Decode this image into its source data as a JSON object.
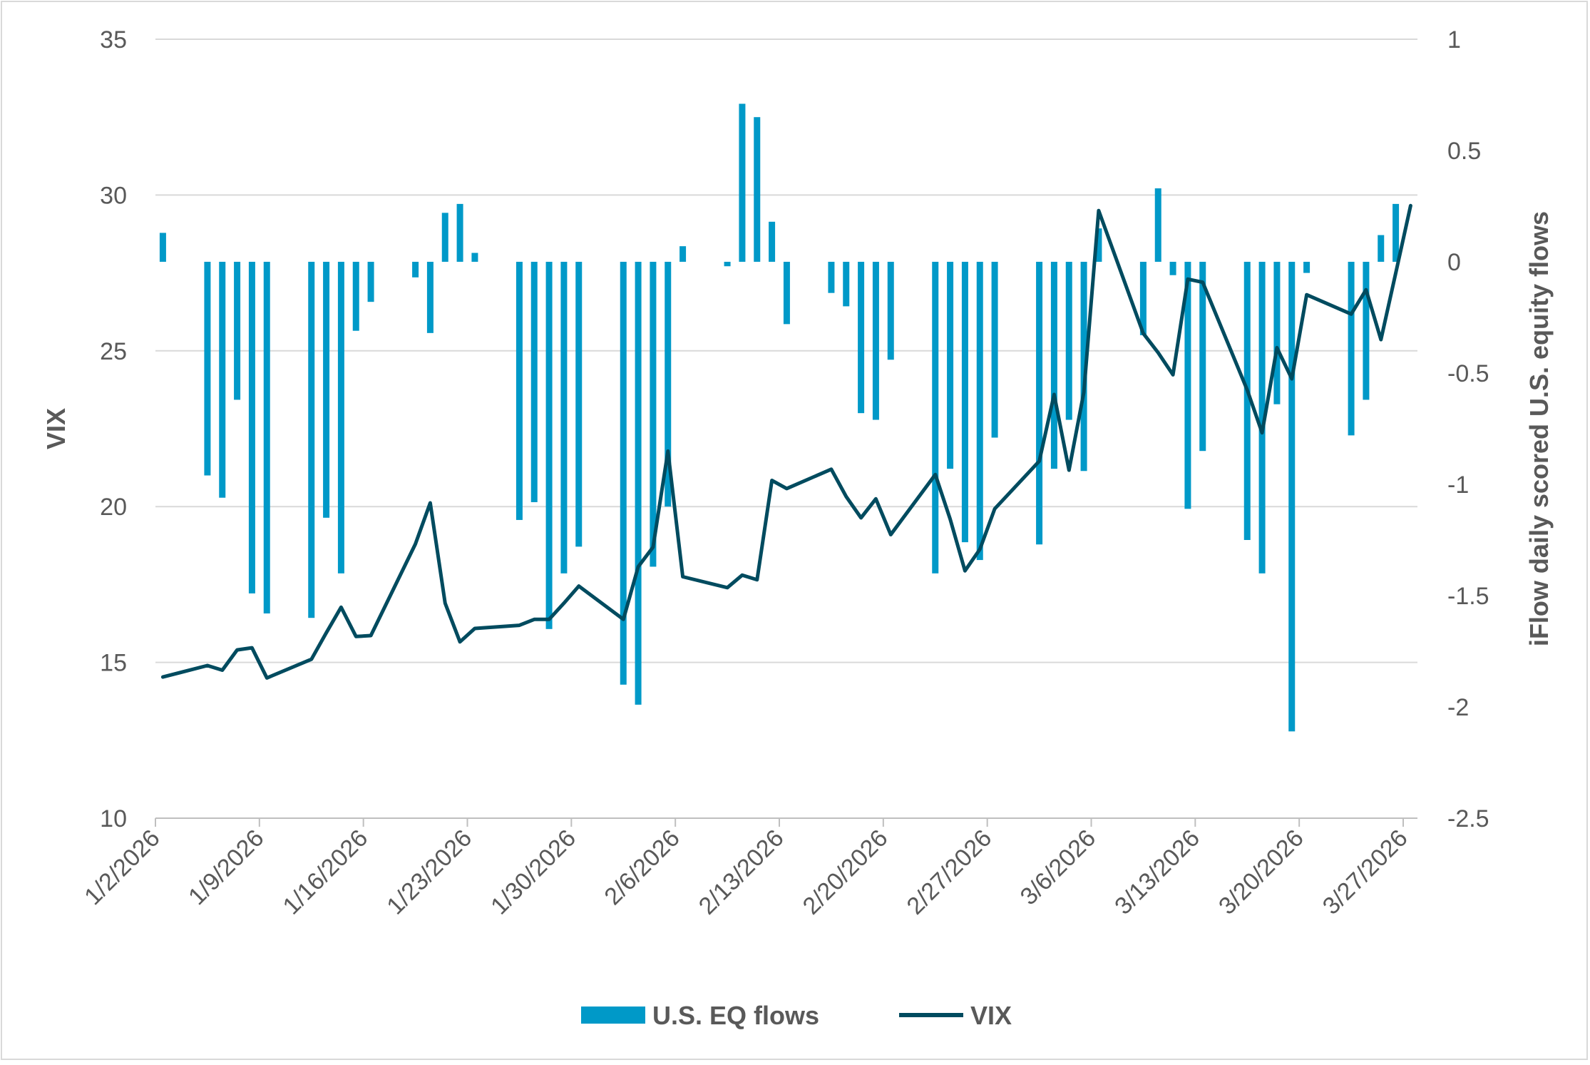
{
  "chart_data": {
    "type": "bar+line",
    "title": "",
    "ylabel_left": "VIX",
    "ylabel_right": "iFlow daily scored U.S. equity flows",
    "ylim_left": [
      10,
      35
    ],
    "yticks_left": [
      "10",
      "15",
      "20",
      "25",
      "30",
      "35"
    ],
    "ylim_right": [
      -2.5,
      1
    ],
    "yticks_right": [
      "-2.5",
      "-2",
      "-1.5",
      "-1",
      "-0.5",
      "0",
      "0.5",
      "1"
    ],
    "xrange": [
      "1/2/2026",
      "3/27/2026"
    ],
    "xticks": [
      "1/2/2026",
      "1/9/2026",
      "1/16/2026",
      "1/23/2026",
      "1/30/2026",
      "2/6/2026",
      "2/13/2026",
      "2/20/2026",
      "2/27/2026",
      "3/6/2026",
      "3/13/2026",
      "3/20/2026",
      "3/27/2026"
    ],
    "grid": "horizontal",
    "legend_position": "bottom",
    "colors": {
      "flows": "#0099c8",
      "vix": "#004b5f",
      "grid": "#d9d9d9"
    },
    "series": [
      {
        "name": "U.S. EQ flows",
        "type": "bar",
        "axis": "right",
        "points": [
          [
            "1/2/2026",
            0.13
          ],
          [
            "1/5/2026",
            -0.96
          ],
          [
            "1/6/2026",
            -1.06
          ],
          [
            "1/7/2026",
            -0.62
          ],
          [
            "1/8/2026",
            -1.49
          ],
          [
            "1/9/2026",
            -1.58
          ],
          [
            "1/12/2026",
            -1.6
          ],
          [
            "1/13/2026",
            -1.15
          ],
          [
            "1/14/2026",
            -1.4
          ],
          [
            "1/15/2026",
            -0.31
          ],
          [
            "1/16/2026",
            -0.18
          ],
          [
            "1/19/2026",
            -0.07
          ],
          [
            "1/20/2026",
            -0.32
          ],
          [
            "1/21/2026",
            0.22
          ],
          [
            "1/22/2026",
            0.26
          ],
          [
            "1/23/2026",
            0.04
          ],
          [
            "1/26/2026",
            -1.16
          ],
          [
            "1/27/2026",
            -1.08
          ],
          [
            "1/28/2026",
            -1.65
          ],
          [
            "1/29/2026",
            -1.4
          ],
          [
            "1/30/2026",
            -1.28
          ],
          [
            "2/2/2026",
            -1.9
          ],
          [
            "2/3/2026",
            -1.99
          ],
          [
            "2/4/2026",
            -1.37
          ],
          [
            "2/5/2026",
            -1.1
          ],
          [
            "2/6/2026",
            0.07
          ],
          [
            "2/9/2026",
            -0.02
          ],
          [
            "2/10/2026",
            0.71
          ],
          [
            "2/11/2026",
            0.65
          ],
          [
            "2/12/2026",
            0.18
          ],
          [
            "2/13/2026",
            -0.28
          ],
          [
            "2/16/2026",
            -0.14
          ],
          [
            "2/17/2026",
            -0.2
          ],
          [
            "2/18/2026",
            -0.68
          ],
          [
            "2/19/2026",
            -0.71
          ],
          [
            "2/20/2026",
            -0.44
          ],
          [
            "2/23/2026",
            -1.4
          ],
          [
            "2/24/2026",
            -0.93
          ],
          [
            "2/25/2026",
            -1.26
          ],
          [
            "2/26/2026",
            -1.34
          ],
          [
            "2/27/2026",
            -0.79
          ],
          [
            "3/2/2026",
            -1.27
          ],
          [
            "3/3/2026",
            -0.93
          ],
          [
            "3/4/2026",
            -0.71
          ],
          [
            "3/5/2026",
            -0.94
          ],
          [
            "3/6/2026",
            0.15
          ],
          [
            "3/9/2026",
            -0.33
          ],
          [
            "3/10/2026",
            0.33
          ],
          [
            "3/11/2026",
            -0.06
          ],
          [
            "3/12/2026",
            -1.11
          ],
          [
            "3/13/2026",
            -0.85
          ],
          [
            "3/16/2026",
            -1.25
          ],
          [
            "3/17/2026",
            -1.4
          ],
          [
            "3/18/2026",
            -0.64
          ],
          [
            "3/19/2026",
            -2.11
          ],
          [
            "3/20/2026",
            -0.05
          ],
          [
            "3/23/2026",
            -0.78
          ],
          [
            "3/24/2026",
            -0.62
          ],
          [
            "3/25/2026",
            0.12
          ],
          [
            "3/26/2026",
            0.26
          ]
        ]
      },
      {
        "name": "VIX",
        "type": "line",
        "axis": "left",
        "points": [
          [
            "1/2/2026",
            14.53
          ],
          [
            "1/5/2026",
            14.9
          ],
          [
            "1/6/2026",
            14.75
          ],
          [
            "1/7/2026",
            15.4
          ],
          [
            "1/8/2026",
            15.47
          ],
          [
            "1/9/2026",
            14.5
          ],
          [
            "1/12/2026",
            15.1
          ],
          [
            "1/13/2026",
            15.95
          ],
          [
            "1/14/2026",
            16.77
          ],
          [
            "1/15/2026",
            15.83
          ],
          [
            "1/16/2026",
            15.86
          ],
          [
            "1/19/2026",
            18.8
          ],
          [
            "1/20/2026",
            20.12
          ],
          [
            "1/21/2026",
            16.9
          ],
          [
            "1/22/2026",
            15.66
          ],
          [
            "1/23/2026",
            16.09
          ],
          [
            "1/26/2026",
            16.19
          ],
          [
            "1/27/2026",
            16.38
          ],
          [
            "1/28/2026",
            16.38
          ],
          [
            "1/29/2026",
            16.9
          ],
          [
            "1/30/2026",
            17.45
          ],
          [
            "2/2/2026",
            16.38
          ],
          [
            "2/3/2026",
            18.07
          ],
          [
            "2/4/2026",
            18.7
          ],
          [
            "2/5/2026",
            21.78
          ],
          [
            "2/6/2026",
            17.75
          ],
          [
            "2/9/2026",
            17.4
          ],
          [
            "2/10/2026",
            17.8
          ],
          [
            "2/11/2026",
            17.65
          ],
          [
            "2/12/2026",
            20.84
          ],
          [
            "2/13/2026",
            20.58
          ],
          [
            "2/16/2026",
            21.2
          ],
          [
            "2/17/2026",
            20.32
          ],
          [
            "2/18/2026",
            19.64
          ],
          [
            "2/19/2026",
            20.25
          ],
          [
            "2/20/2026",
            19.1
          ],
          [
            "2/23/2026",
            21.03
          ],
          [
            "2/24/2026",
            19.6
          ],
          [
            "2/25/2026",
            17.94
          ],
          [
            "2/26/2026",
            18.63
          ],
          [
            "2/27/2026",
            19.93
          ],
          [
            "3/2/2026",
            21.46
          ],
          [
            "3/3/2026",
            23.6
          ],
          [
            "3/4/2026",
            21.17
          ],
          [
            "3/5/2026",
            23.67
          ],
          [
            "3/6/2026",
            29.5
          ],
          [
            "3/9/2026",
            25.56
          ],
          [
            "3/10/2026",
            24.94
          ],
          [
            "3/11/2026",
            24.23
          ],
          [
            "3/12/2026",
            27.3
          ],
          [
            "3/13/2026",
            27.2
          ],
          [
            "3/16/2026",
            23.74
          ],
          [
            "3/17/2026",
            22.37
          ],
          [
            "3/18/2026",
            25.1
          ],
          [
            "3/19/2026",
            24.1
          ],
          [
            "3/20/2026",
            26.8
          ],
          [
            "3/23/2026",
            26.18
          ],
          [
            "3/24/2026",
            26.96
          ],
          [
            "3/25/2026",
            25.36
          ],
          [
            "3/26/2026",
            27.5
          ],
          [
            "3/27/2026",
            29.66
          ]
        ]
      }
    ]
  }
}
